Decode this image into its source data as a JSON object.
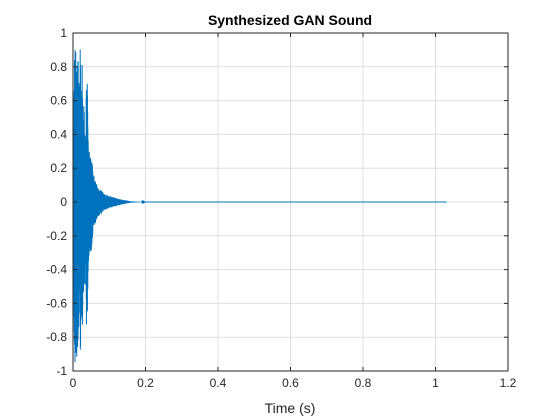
{
  "chart_data": {
    "type": "line",
    "title": "Synthesized GAN Sound",
    "xlabel": "Time (s)",
    "ylabel": "",
    "xlim": [
      0,
      1.2
    ],
    "ylim": [
      -1,
      1
    ],
    "xticks": [
      0,
      0.2,
      0.4,
      0.6,
      0.8,
      1,
      1.2
    ],
    "yticks": [
      -1,
      -0.8,
      -0.6,
      -0.4,
      -0.2,
      0,
      0.2,
      0.4,
      0.6,
      0.8,
      1
    ],
    "grid": true,
    "colors": {
      "series": "#0072bd",
      "axis": "#262626",
      "grid": "#dfdfdf"
    },
    "series": [
      {
        "x_start": 0,
        "x_end": 1.0313,
        "envelope": [
          [
            0.0,
            0.0
          ],
          [
            0.003,
            0.75
          ],
          [
            0.005,
            1.0
          ],
          [
            0.008,
            0.92
          ],
          [
            0.01,
            0.97
          ],
          [
            0.012,
            0.85
          ],
          [
            0.015,
            0.9
          ],
          [
            0.018,
            0.6
          ],
          [
            0.02,
            0.98
          ],
          [
            0.023,
            0.55
          ],
          [
            0.026,
            0.93
          ],
          [
            0.028,
            0.45
          ],
          [
            0.03,
            0.62
          ],
          [
            0.034,
            0.35
          ],
          [
            0.038,
            0.85
          ],
          [
            0.042,
            0.4
          ],
          [
            0.046,
            0.28
          ],
          [
            0.05,
            0.32
          ],
          [
            0.055,
            0.18
          ],
          [
            0.06,
            0.14
          ],
          [
            0.068,
            0.09
          ],
          [
            0.075,
            0.08
          ],
          [
            0.085,
            0.05
          ],
          [
            0.095,
            0.04
          ],
          [
            0.11,
            0.03
          ],
          [
            0.125,
            0.02
          ],
          [
            0.14,
            0.012
          ],
          [
            0.16,
            0.004
          ],
          [
            0.2,
            0.0
          ],
          [
            1.0313,
            0.0
          ]
        ]
      }
    ]
  }
}
